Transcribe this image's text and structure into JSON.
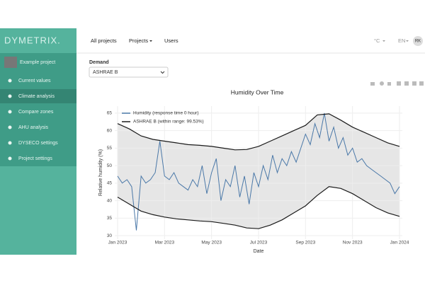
{
  "logo": "DYMETRIX.",
  "project": "Example project",
  "menu": [
    "Current values",
    "Climate analysis",
    "Compare zones",
    "AHU analysis",
    "DYSECO settings",
    "Project settings"
  ],
  "nav": [
    "All projects",
    "Projects",
    "Users"
  ],
  "unit_menu": "°C",
  "language_menu": "EN",
  "user_initials": "RK",
  "demand": {
    "label": "Demand",
    "selected": "ASHRAE B"
  },
  "chart_data": {
    "type": "line",
    "title": "Humidity Over Time",
    "xlabel": "Date",
    "ylabel": "Relative humidity (%)",
    "xlim": [
      0,
      12
    ],
    "xticks": [
      {
        "value": 0,
        "label": "Jan 2023"
      },
      {
        "value": 2,
        "label": "Mar 2023"
      },
      {
        "value": 4,
        "label": "May 2023"
      },
      {
        "value": 6,
        "label": "Jul 2023"
      },
      {
        "value": 8,
        "label": "Sep 2023"
      },
      {
        "value": 10,
        "label": "Nov 2023"
      },
      {
        "value": 12,
        "label": "Jan 2024"
      }
    ],
    "ylim": [
      29,
      67
    ],
    "yticks": [
      30,
      35,
      40,
      45,
      50,
      55,
      60,
      65
    ],
    "grid": true,
    "legend": "top-left",
    "series": [
      {
        "name": "Humidity (response time 0 hour)",
        "color": "#4a78a8",
        "x": [
          0,
          0.2,
          0.4,
          0.6,
          0.8,
          1,
          1.2,
          1.4,
          1.6,
          1.8,
          2,
          2.2,
          2.4,
          2.6,
          2.8,
          3,
          3.2,
          3.4,
          3.6,
          3.8,
          4,
          4.2,
          4.4,
          4.6,
          4.8,
          5,
          5.2,
          5.4,
          5.6,
          5.8,
          6,
          6.2,
          6.4,
          6.6,
          6.8,
          7,
          7.2,
          7.4,
          7.6,
          7.8,
          8,
          8.2,
          8.4,
          8.6,
          8.8,
          9,
          9.2,
          9.4,
          9.6,
          9.8,
          10,
          10.2,
          10.4,
          10.6,
          10.8,
          11,
          11.2,
          11.4,
          11.6,
          11.8,
          12
        ],
        "values": [
          47,
          45,
          46,
          44,
          31.5,
          47,
          45,
          46,
          48,
          57,
          47,
          46,
          48,
          45,
          44,
          43,
          46,
          44,
          50,
          42,
          48,
          52,
          40,
          46,
          44,
          50,
          41,
          47,
          39,
          48,
          44,
          50,
          46,
          53,
          48,
          52,
          50,
          54,
          51,
          55,
          59,
          56,
          62,
          58,
          65,
          57,
          61,
          55,
          58,
          53,
          55,
          51,
          52,
          50,
          49,
          48,
          47,
          46,
          45,
          42,
          44
        ]
      },
      {
        "name": "ASHRAE B (within range: 99.53%)",
        "color": "#1a1a1a",
        "band_color": "#e6e6e6",
        "x": [
          0,
          0.5,
          1,
          1.5,
          2,
          2.5,
          3,
          3.5,
          4,
          4.5,
          5,
          5.5,
          6,
          6.5,
          7,
          7.5,
          8,
          8.5,
          9,
          9.5,
          10,
          10.5,
          11,
          11.5,
          12
        ],
        "values": [
          62,
          60.5,
          58.5,
          57.5,
          57,
          56.5,
          56,
          55.8,
          55.5,
          55,
          54.5,
          54.6,
          55.5,
          57,
          58.5,
          60,
          61.5,
          64.5,
          64.8,
          63,
          61,
          59.5,
          58,
          56.5,
          55.5
        ],
        "lower": [
          41,
          39,
          37,
          36,
          35.3,
          34.8,
          34.5,
          34.2,
          34,
          33.5,
          33,
          32.2,
          32,
          33,
          34.5,
          36.5,
          38.5,
          41.5,
          44,
          43.5,
          42,
          40,
          38,
          36.5,
          35.5
        ]
      }
    ]
  }
}
